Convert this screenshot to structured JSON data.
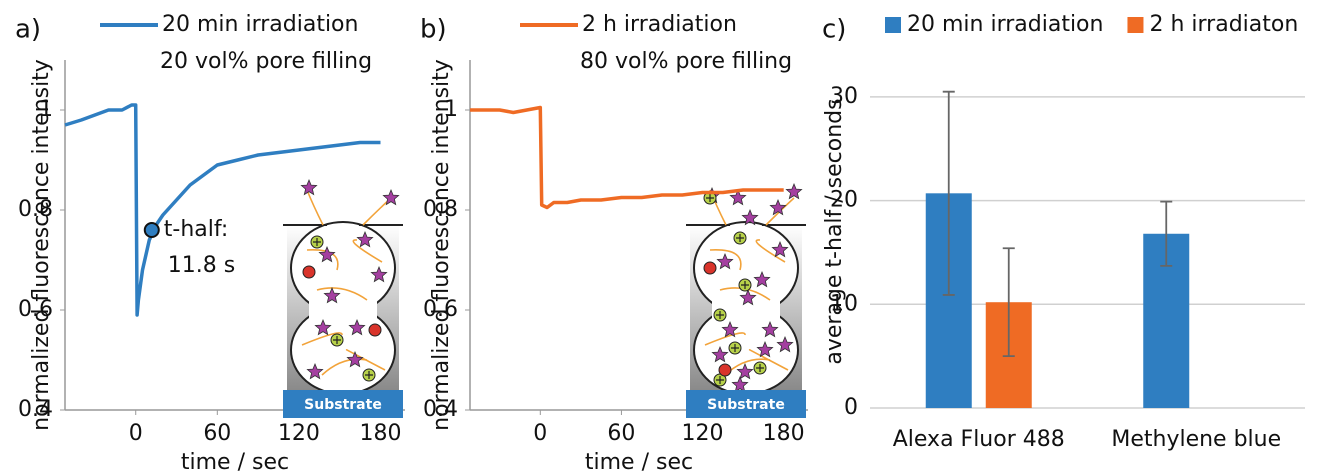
{
  "chart_data": [
    {
      "type": "line",
      "panel_label": "a)",
      "x_label": "time / sec",
      "y_label": "normalized fluorescence intensity",
      "legend_subtitle": "20 vol% pore filling",
      "xlim": [
        -52,
        198
      ],
      "ylim": [
        0.4,
        1.1
      ],
      "xticks": [
        0,
        60,
        120,
        180
      ],
      "yticks": [
        0.4,
        0.6,
        0.8,
        1
      ],
      "x": [
        -52,
        -40,
        -30,
        -20,
        -10,
        -3,
        0,
        1,
        2,
        5,
        10,
        15,
        20,
        30,
        40,
        50,
        60,
        75,
        90,
        105,
        120,
        135,
        150,
        165,
        180
      ],
      "series": [
        {
          "name": "20 min irradiation",
          "color": "#2f7ec1",
          "values": [
            0.97,
            0.98,
            0.99,
            1.0,
            1.0,
            1.01,
            1.01,
            0.59,
            0.62,
            0.68,
            0.74,
            0.77,
            0.79,
            0.82,
            0.85,
            0.87,
            0.89,
            0.9,
            0.91,
            0.915,
            0.92,
            0.925,
            0.93,
            0.935,
            0.935
          ]
        }
      ],
      "annotation": {
        "x": 11.8,
        "y": 0.76,
        "label": "t-half:",
        "value_text": "11.8 s"
      },
      "inset_label": "Substrate"
    },
    {
      "type": "line",
      "panel_label": "b)",
      "x_label": "time / sec",
      "y_label": "normalized fluorescence intensity",
      "legend_subtitle": "80 vol% pore filling",
      "xlim": [
        -52,
        198
      ],
      "ylim": [
        0.4,
        1.1
      ],
      "xticks": [
        0,
        60,
        120,
        180
      ],
      "yticks": [
        0.4,
        0.6,
        0.8,
        1
      ],
      "x": [
        -52,
        -40,
        -30,
        -20,
        -10,
        0,
        1,
        5,
        10,
        20,
        30,
        45,
        60,
        75,
        90,
        105,
        120,
        135,
        150,
        165,
        180
      ],
      "series": [
        {
          "name": "2 h irradiation",
          "color": "#ef6b24",
          "values": [
            1.0,
            1.0,
            1.0,
            0.995,
            1.0,
            1.005,
            0.81,
            0.805,
            0.815,
            0.815,
            0.82,
            0.82,
            0.825,
            0.825,
            0.83,
            0.83,
            0.835,
            0.835,
            0.84,
            0.84,
            0.84
          ]
        }
      ],
      "inset_label": "Substrate"
    },
    {
      "type": "bar",
      "panel_label": "c)",
      "y_label": "average t-half / seconds",
      "categories": [
        "Alexa Fluor 488",
        "Methylene blue"
      ],
      "ylim": [
        0,
        35
      ],
      "yticks": [
        0,
        10,
        20,
        30
      ],
      "grid": true,
      "series": [
        {
          "name": "20 min irradiation",
          "color": "#2f7ec1",
          "values": [
            20.7,
            16.8
          ],
          "errors": [
            9.8,
            3.1
          ]
        },
        {
          "name": "2 h irradiaton",
          "color": "#ef6b24",
          "values": [
            10.2,
            null
          ],
          "errors": [
            5.2,
            null
          ]
        }
      ]
    }
  ]
}
